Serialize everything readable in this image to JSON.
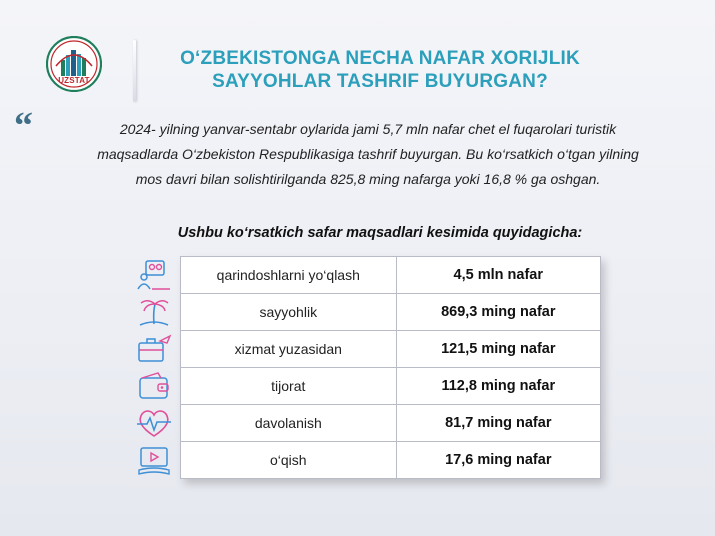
{
  "header": {
    "logo_text": "UZSTAT",
    "title_line1": "O‘ZBEKISTONGA NECHA NAFAR XORIJLIK",
    "title_line2": "SAYYOHLAR TASHRIF BUYURGAN?"
  },
  "intro": {
    "quote_mark": "“",
    "line1": "2024- yilning yanvar-sentabr oylarida jami 5,7 mln nafar chet el fuqarolari turistik",
    "line2": "maqsadlarda O‘zbekiston Respublikasiga tashrif buyurgan. Bu ko‘rsatkich o‘tgan yilning",
    "line3": "mos davri bilan solishtirilganda 825,8 ming nafarga yoki 16,8 % ga oshgan."
  },
  "subtitle": "Ushbu ko‘rsatkich safar maqsadlari kesimida quyidagicha:",
  "rows": [
    {
      "label": "qarindoshlarni  yo‘qlash",
      "value": "4,5 mln nafar",
      "icon": "family-icon"
    },
    {
      "label": "sayyohlik",
      "value": "869,3 ming nafar",
      "icon": "palm-tree-icon"
    },
    {
      "label": "xizmat  yuzasidan",
      "value": "121,5 ming nafar",
      "icon": "briefcase-plane-icon"
    },
    {
      "label": "tijorat",
      "value": "112,8 ming nafar",
      "icon": "wallet-icon"
    },
    {
      "label": "davolanish",
      "value": "81,7 ming nafar",
      "icon": "heartbeat-icon"
    },
    {
      "label": "o‘qish",
      "value": "17,6 ming nafar",
      "icon": "study-icon"
    }
  ],
  "colors": {
    "title": "#2c9fbb",
    "logo_red": "#c0272d",
    "icon_blue": "#3d8fd6",
    "icon_pink": "#e0509a"
  }
}
